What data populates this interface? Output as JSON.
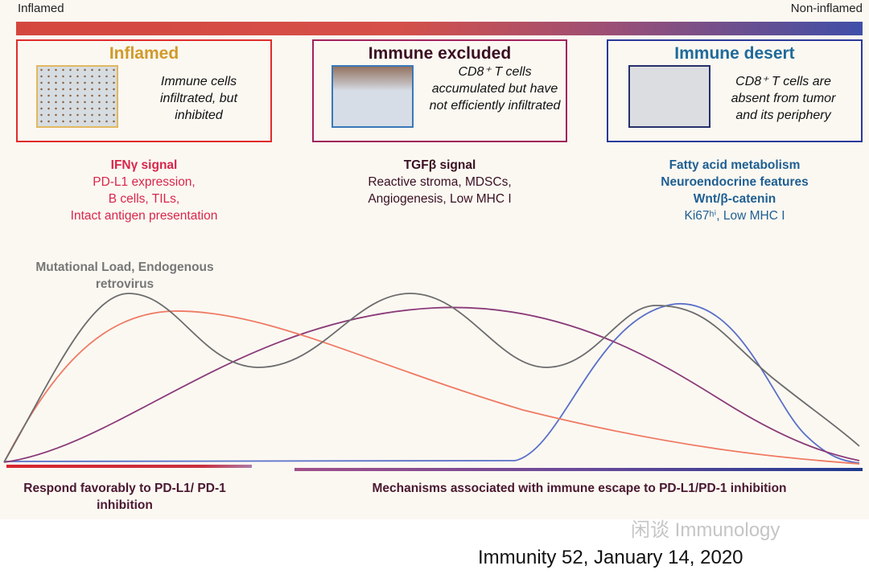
{
  "scale": {
    "left_label": "Inflamed",
    "right_label": "Non-inflamed"
  },
  "phenotypes": [
    {
      "title": "Inflamed",
      "description": "Immune cells infiltrated, but inhibited",
      "signal_title": "IFNγ signal",
      "signal_lines": [
        "PD-L1 expression,",
        "B cells, TILs,",
        "Intact antigen presentation"
      ],
      "color": "#e02b2b",
      "title_color": "#d19a2a"
    },
    {
      "title": "Immune excluded",
      "description": "CD8⁺ T cells accumulated but have not efficiently infiltrated",
      "signal_title": "TGFβ signal",
      "signal_lines": [
        "Reactive stroma, MDSCs,",
        "Angiogenesis, Low MHC I"
      ],
      "color": "#a0225a",
      "title_color": "#3a0f22"
    },
    {
      "title": "Immune desert",
      "description": "CD8⁺ T cells are absent from tumor and its periphery",
      "signal_title_lines": [
        "Fatty acid metabolism",
        "Neuroendocrine features",
        "Wnt/β-catenin"
      ],
      "signal_lines": [
        "Ki67ʰⁱ, Low MHC I"
      ],
      "color": "#2a3a9a",
      "title_color": "#1f6a9a"
    }
  ],
  "curve_label": "Mutational Load, Endogenous retrovirus",
  "curve_colors": {
    "gray": "#6c6c6c",
    "orange": "#ef7a62",
    "purple": "#8a3a78",
    "blue": "#5a70c8"
  },
  "outcomes": {
    "left": "Respond favorably to PD-L1/ PD-1 inhibition",
    "right": "Mechanisms associated with immune escape to PD-L1/PD-1 inhibition"
  },
  "citation": "Immunity 52, January 14, 2020",
  "watermark": "闲谈 Immunology"
}
